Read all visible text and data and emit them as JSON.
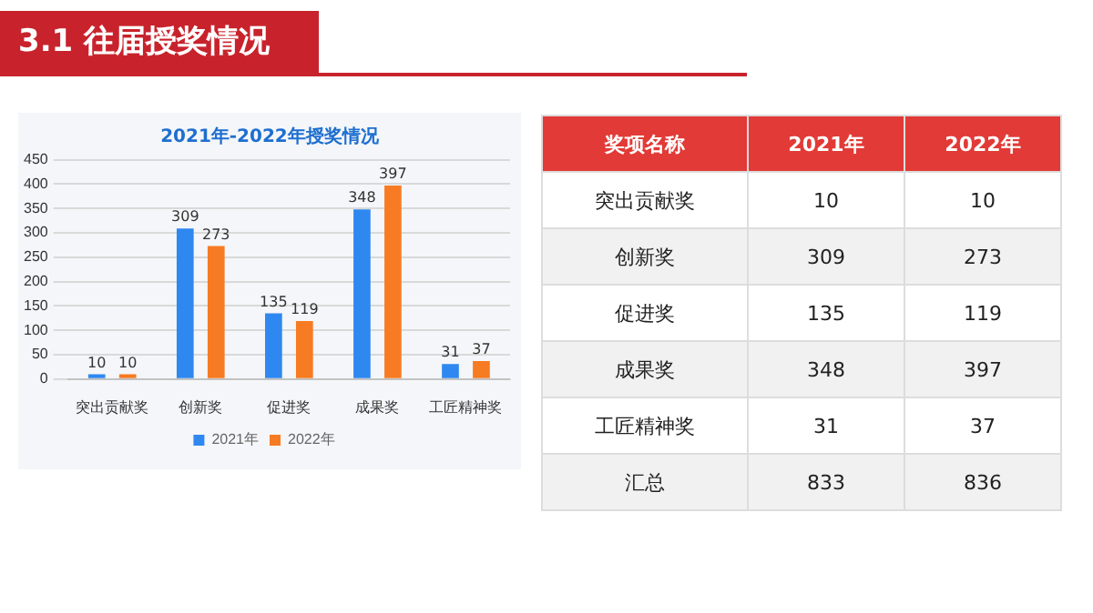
{
  "chart_data": {
    "type": "bar",
    "title": "2021年-2022年授奖情况",
    "categories": [
      "突出贡献奖",
      "创新奖",
      "促进奖",
      "成果奖",
      "工匠精神奖"
    ],
    "series": [
      {
        "name": "2021年",
        "color": "#2f88f0",
        "values": [
          10,
          309,
          135,
          348,
          31
        ]
      },
      {
        "name": "2022年",
        "color": "#f77b22",
        "values": [
          10,
          273,
          119,
          397,
          37
        ]
      }
    ],
    "ylim": [
      0,
      450
    ],
    "yticks": [
      0,
      50,
      100,
      150,
      200,
      250,
      300,
      350,
      400,
      450
    ],
    "grid": "y",
    "legend": "bottom",
    "data_labels": true,
    "annotations": [
      "3.1 往届授奖情况",
      "奖项名称",
      "10",
      "10",
      "309",
      "273",
      "135",
      "119",
      "348",
      "397",
      "31",
      "37",
      "汇总",
      "833",
      "836"
    ]
  }
}
